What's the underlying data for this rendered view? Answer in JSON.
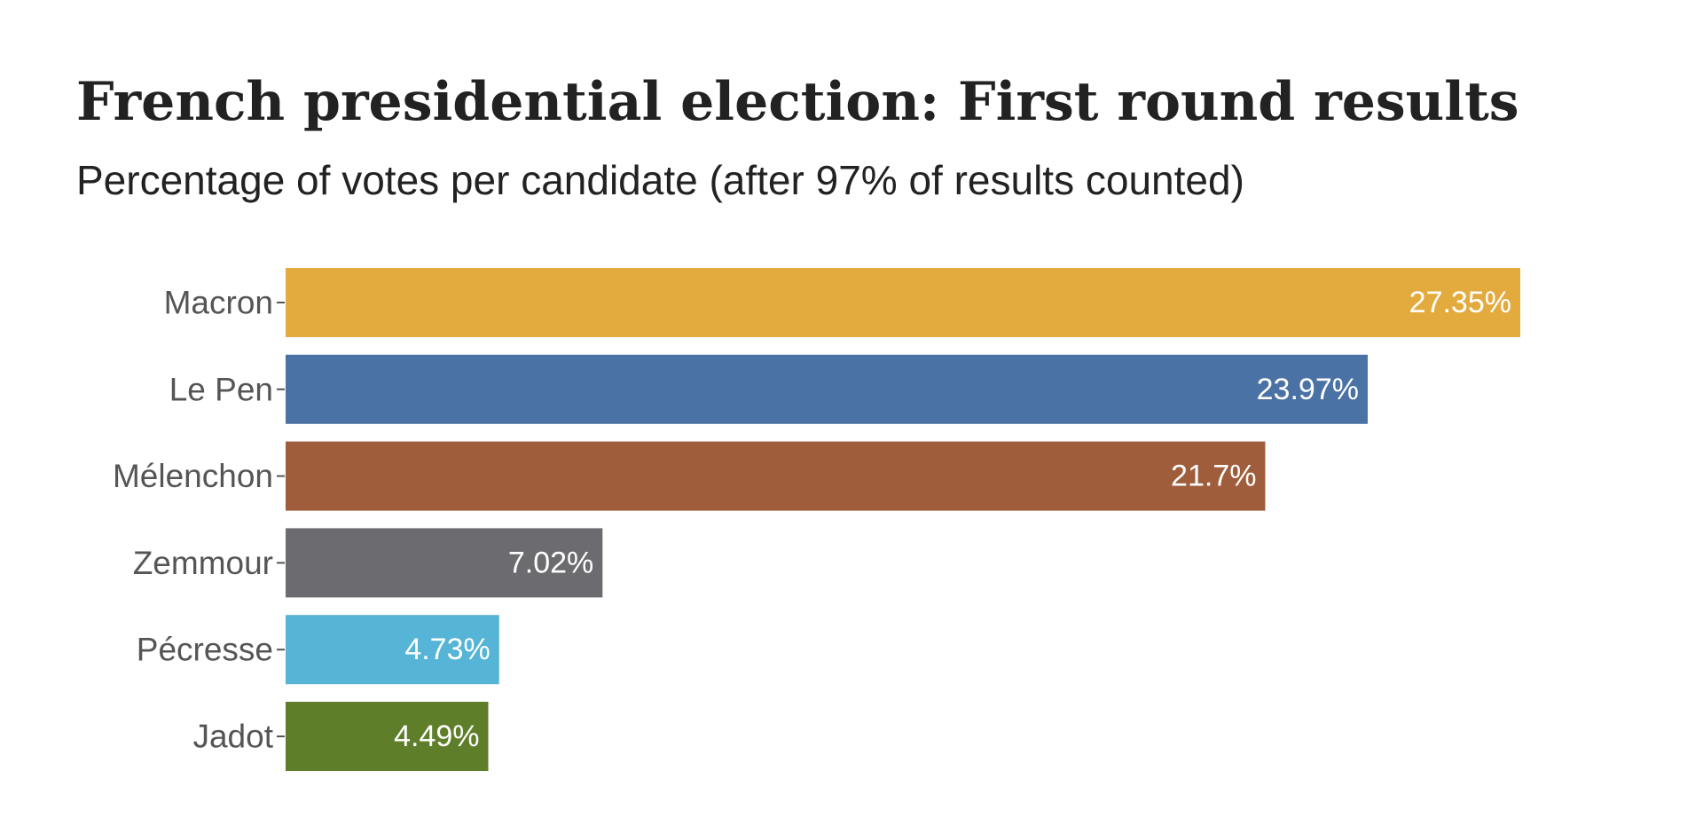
{
  "chart_data": {
    "type": "bar",
    "orientation": "horizontal",
    "title": "French presidential election: First round results",
    "subtitle": "Percentage of votes per candidate (after 97% of results counted)",
    "categories": [
      "Macron",
      "Le Pen",
      "Mélenchon",
      "Zemmour",
      "Pécresse",
      "Jadot"
    ],
    "values": [
      27.35,
      23.97,
      21.7,
      7.02,
      4.73,
      4.49
    ],
    "value_labels": [
      "27.35%",
      "23.97%",
      "21.7%",
      "7.02%",
      "4.73%",
      "4.49%"
    ],
    "colors": [
      "#e3ab3e",
      "#4a72a5",
      "#a05d3b",
      "#6b6b70",
      "#56b4d6",
      "#5f7e2a"
    ],
    "xlim": [
      0,
      27.35
    ],
    "grid": false,
    "legend": "none"
  }
}
